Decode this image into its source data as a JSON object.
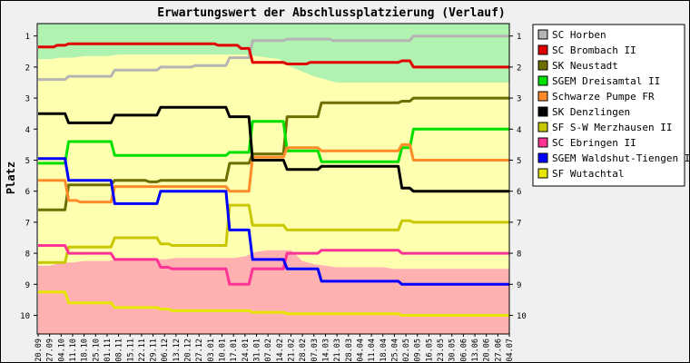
{
  "chart_data": {
    "type": "line",
    "title": "Erwartungswert der Abschlussplatzierung (Verlauf)",
    "ylabel": "Platz",
    "xlabel": "",
    "y_reversed": true,
    "ylim": [
      0.6,
      10.6
    ],
    "y_ticks": [
      1,
      2,
      3,
      4,
      5,
      6,
      7,
      8,
      9,
      10
    ],
    "grid": false,
    "legend_position": "right",
    "categories": [
      "20.09",
      "27.09",
      "04.10",
      "11.10",
      "18.10",
      "25.10",
      "01.11",
      "08.11",
      "15.11",
      "22.11",
      "29.11",
      "06.12",
      "13.12",
      "20.12",
      "27.12",
      "03.01",
      "10.01",
      "17.01",
      "24.01",
      "31.01",
      "07.02",
      "14.02",
      "21.02",
      "28.02",
      "07.03",
      "14.03",
      "21.03",
      "28.03",
      "04.04",
      "11.04",
      "18.04",
      "25.04",
      "02.05",
      "09.05",
      "16.05",
      "23.05",
      "30.05",
      "06.06",
      "13.06",
      "20.06",
      "27.06",
      "04.07"
    ],
    "x_tick_labels": [
      "20.09",
      "27.09",
      "04.10",
      "11.10",
      "18.10",
      "25.10",
      "01.11",
      "08.11",
      "15.11",
      "22.11",
      "29.11",
      "06.12",
      "13.12",
      "20.12",
      "27.12",
      "03.01",
      "10.01",
      "17.01",
      "24.01",
      "31.01",
      "07.02",
      "14.02",
      "21.02",
      "28.02",
      "07.03",
      "14.03",
      "21.03",
      "28.03",
      "04.04",
      "11.04",
      "18.04",
      "25.04",
      "02.05",
      "09.05",
      "16.05",
      "23.05",
      "30.05",
      "06.06",
      "13.06",
      "20.06",
      "27.06",
      "04.07"
    ],
    "bands": [
      {
        "color": "#b0f2b0",
        "top": [
          0.6,
          0.6,
          0.6,
          0.6,
          0.6,
          0.6,
          0.6,
          0.6,
          0.6,
          0.6,
          0.6,
          0.6,
          0.6,
          0.6,
          0.6,
          0.6,
          0.6,
          0.6,
          0.6,
          0.6,
          0.6,
          0.6,
          0.6,
          0.6,
          0.6,
          0.6,
          0.6,
          0.6,
          0.6,
          0.6,
          0.6,
          0.6,
          0.6,
          0.6,
          0.6,
          0.6,
          0.6,
          0.6,
          0.6,
          0.6,
          0.6,
          0.6
        ],
        "bottom": [
          1.75,
          1.75,
          1.7,
          1.7,
          1.65,
          1.65,
          1.65,
          1.6,
          1.6,
          1.6,
          1.6,
          1.6,
          1.6,
          1.6,
          1.6,
          1.6,
          1.6,
          1.6,
          1.6,
          1.65,
          1.7,
          1.75,
          2.0,
          2.15,
          2.3,
          2.4,
          2.5,
          2.5,
          2.5,
          2.5,
          2.5,
          2.5,
          2.5,
          2.5,
          2.5,
          2.5,
          2.5,
          2.5,
          2.5,
          2.5,
          2.5,
          2.5
        ]
      },
      {
        "color": "#ffffb0",
        "top": [
          1.75,
          1.75,
          1.7,
          1.7,
          1.65,
          1.65,
          1.65,
          1.6,
          1.6,
          1.6,
          1.6,
          1.6,
          1.6,
          1.6,
          1.6,
          1.6,
          1.6,
          1.6,
          1.6,
          1.65,
          1.7,
          1.75,
          2.0,
          2.15,
          2.3,
          2.4,
          2.5,
          2.5,
          2.5,
          2.5,
          2.5,
          2.5,
          2.5,
          2.5,
          2.5,
          2.5,
          2.5,
          2.5,
          2.5,
          2.5,
          2.5,
          2.5
        ],
        "bottom": [
          8.4,
          8.4,
          8.3,
          8.3,
          8.25,
          8.25,
          8.25,
          8.2,
          8.2,
          8.2,
          8.2,
          8.2,
          8.15,
          8.15,
          8.15,
          8.15,
          8.15,
          8.15,
          8.1,
          7.95,
          7.9,
          7.9,
          7.9,
          8.25,
          8.35,
          8.4,
          8.45,
          8.45,
          8.45,
          8.45,
          8.45,
          8.5,
          8.5,
          8.5,
          8.5,
          8.5,
          8.5,
          8.5,
          8.5,
          8.5,
          8.5,
          8.5
        ]
      },
      {
        "color": "#ffb0b0",
        "top": [
          8.4,
          8.4,
          8.3,
          8.3,
          8.25,
          8.25,
          8.25,
          8.2,
          8.2,
          8.2,
          8.2,
          8.2,
          8.15,
          8.15,
          8.15,
          8.15,
          8.15,
          8.15,
          8.1,
          7.95,
          7.9,
          7.9,
          7.9,
          8.25,
          8.35,
          8.4,
          8.45,
          8.45,
          8.45,
          8.45,
          8.45,
          8.5,
          8.5,
          8.5,
          8.5,
          8.5,
          8.5,
          8.5,
          8.5,
          8.5,
          8.5,
          8.5
        ],
        "bottom": [
          10.6,
          10.6,
          10.6,
          10.6,
          10.6,
          10.6,
          10.6,
          10.6,
          10.6,
          10.6,
          10.6,
          10.6,
          10.6,
          10.6,
          10.6,
          10.6,
          10.6,
          10.6,
          10.6,
          10.6,
          10.6,
          10.6,
          10.6,
          10.6,
          10.6,
          10.6,
          10.6,
          10.6,
          10.6,
          10.6,
          10.6,
          10.6,
          10.6,
          10.6,
          10.6,
          10.6,
          10.6,
          10.6,
          10.6,
          10.6,
          10.6,
          10.6
        ]
      }
    ],
    "series": [
      {
        "name": "SC Horben",
        "color": "#b4b4b4",
        "values": [
          2.4,
          2.4,
          2.4,
          2.3,
          2.3,
          2.3,
          2.3,
          2.1,
          2.1,
          2.1,
          2.1,
          2.0,
          2.0,
          2.0,
          1.95,
          1.95,
          1.95,
          1.7,
          1.7,
          1.15,
          1.15,
          1.15,
          1.1,
          1.1,
          1.1,
          1.1,
          1.15,
          1.15,
          1.15,
          1.15,
          1.15,
          1.15,
          1.15,
          1.0,
          1.0,
          1.0,
          1.0,
          1.0,
          1.0,
          1.0,
          1.0,
          1.0
        ]
      },
      {
        "name": "SC Brombach II",
        "color": "#e00000",
        "values": [
          1.35,
          1.35,
          1.3,
          1.25,
          1.25,
          1.25,
          1.25,
          1.25,
          1.25,
          1.25,
          1.25,
          1.25,
          1.25,
          1.25,
          1.25,
          1.25,
          1.3,
          1.3,
          1.4,
          1.85,
          1.85,
          1.85,
          1.9,
          1.9,
          1.85,
          1.85,
          1.85,
          1.85,
          1.85,
          1.85,
          1.85,
          1.85,
          1.8,
          2.0,
          2.0,
          2.0,
          2.0,
          2.0,
          2.0,
          2.0,
          2.0,
          2.0
        ]
      },
      {
        "name": "SK Neustadt",
        "color": "#6e6e00",
        "values": [
          6.6,
          6.6,
          6.6,
          5.8,
          5.8,
          5.8,
          5.8,
          5.65,
          5.65,
          5.65,
          5.7,
          5.65,
          5.65,
          5.65,
          5.65,
          5.65,
          5.65,
          5.1,
          5.1,
          4.8,
          4.8,
          4.8,
          3.6,
          3.6,
          3.6,
          3.15,
          3.15,
          3.15,
          3.15,
          3.15,
          3.15,
          3.15,
          3.1,
          3.0,
          3.0,
          3.0,
          3.0,
          3.0,
          3.0,
          3.0,
          3.0,
          3.0
        ]
      },
      {
        "name": "SGEM Dreisamtal II",
        "color": "#00e000",
        "values": [
          5.1,
          5.1,
          5.1,
          4.4,
          4.4,
          4.4,
          4.4,
          4.85,
          4.85,
          4.85,
          4.85,
          4.85,
          4.85,
          4.85,
          4.85,
          4.85,
          4.85,
          4.75,
          4.75,
          3.75,
          3.75,
          3.75,
          4.7,
          4.7,
          4.7,
          5.05,
          5.05,
          5.05,
          5.05,
          5.05,
          5.05,
          5.05,
          4.6,
          4.0,
          4.0,
          4.0,
          4.0,
          4.0,
          4.0,
          4.0,
          4.0,
          4.0
        ]
      },
      {
        "name": "Schwarze Pumpe FR",
        "color": "#ff8c28",
        "values": [
          5.65,
          5.65,
          5.65,
          6.3,
          6.35,
          6.35,
          6.35,
          5.85,
          5.85,
          5.85,
          5.85,
          5.85,
          5.85,
          5.85,
          5.85,
          5.85,
          5.85,
          6.0,
          6.0,
          4.9,
          4.9,
          4.9,
          4.6,
          4.6,
          4.6,
          4.7,
          4.7,
          4.7,
          4.7,
          4.7,
          4.7,
          4.7,
          4.5,
          5.0,
          5.0,
          5.0,
          5.0,
          5.0,
          5.0,
          5.0,
          5.0,
          5.0
        ]
      },
      {
        "name": "SK Denzlingen",
        "color": "#000000",
        "values": [
          3.5,
          3.5,
          3.5,
          3.8,
          3.8,
          3.8,
          3.8,
          3.55,
          3.55,
          3.55,
          3.55,
          3.3,
          3.3,
          3.3,
          3.3,
          3.3,
          3.3,
          3.6,
          3.6,
          5.0,
          5.0,
          5.0,
          5.3,
          5.3,
          5.3,
          5.2,
          5.2,
          5.2,
          5.2,
          5.2,
          5.2,
          5.2,
          5.9,
          6.0,
          6.0,
          6.0,
          6.0,
          6.0,
          6.0,
          6.0,
          6.0,
          6.0
        ]
      },
      {
        "name": "SF S-W Merzhausen II",
        "color": "#c8c800",
        "values": [
          8.3,
          8.3,
          8.3,
          7.8,
          7.8,
          7.8,
          7.8,
          7.5,
          7.5,
          7.5,
          7.5,
          7.7,
          7.75,
          7.75,
          7.75,
          7.75,
          7.75,
          6.45,
          6.45,
          7.1,
          7.1,
          7.1,
          7.25,
          7.25,
          7.25,
          7.25,
          7.25,
          7.25,
          7.25,
          7.25,
          7.25,
          7.25,
          6.95,
          7.0,
          7.0,
          7.0,
          7.0,
          7.0,
          7.0,
          7.0,
          7.0,
          7.0
        ]
      },
      {
        "name": "SC Ebringen II",
        "color": "#ff3296",
        "values": [
          7.75,
          7.75,
          7.75,
          8.0,
          8.0,
          8.0,
          8.0,
          8.2,
          8.2,
          8.2,
          8.2,
          8.45,
          8.5,
          8.5,
          8.5,
          8.5,
          8.5,
          9.0,
          9.0,
          8.5,
          8.5,
          8.5,
          8.0,
          8.0,
          8.0,
          7.9,
          7.9,
          7.9,
          7.9,
          7.9,
          7.9,
          7.9,
          8.0,
          8.0,
          8.0,
          8.0,
          8.0,
          8.0,
          8.0,
          8.0,
          8.0,
          8.0
        ]
      },
      {
        "name": "SGEM Waldshut-Tiengen II",
        "color": "#0000ff",
        "values": [
          4.95,
          4.95,
          4.95,
          5.65,
          5.65,
          5.65,
          5.65,
          6.4,
          6.4,
          6.4,
          6.4,
          6.0,
          6.0,
          6.0,
          6.0,
          6.0,
          6.0,
          7.25,
          7.25,
          8.2,
          8.2,
          8.2,
          8.5,
          8.5,
          8.5,
          8.9,
          8.9,
          8.9,
          8.9,
          8.9,
          8.9,
          8.9,
          9.0,
          9.0,
          9.0,
          9.0,
          9.0,
          9.0,
          9.0,
          9.0,
          9.0,
          9.0
        ]
      },
      {
        "name": "SF Wutachtal",
        "color": "#e6e600",
        "values": [
          9.25,
          9.25,
          9.25,
          9.6,
          9.6,
          9.6,
          9.6,
          9.75,
          9.75,
          9.75,
          9.75,
          9.8,
          9.85,
          9.85,
          9.85,
          9.85,
          9.85,
          9.85,
          9.85,
          9.9,
          9.9,
          9.9,
          9.95,
          9.95,
          9.95,
          9.95,
          9.95,
          9.95,
          9.95,
          9.95,
          9.95,
          9.95,
          10.0,
          10.0,
          10.0,
          10.0,
          10.0,
          10.0,
          10.0,
          10.0,
          10.0,
          10.0
        ]
      }
    ]
  }
}
